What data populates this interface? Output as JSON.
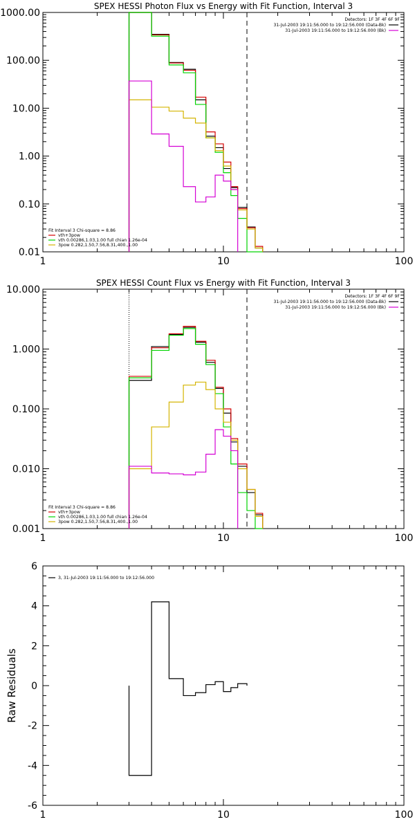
{
  "chart_data": [
    {
      "type": "line",
      "title": "SPEX HESSI Photon Flux vs Energy with Fit Function, Interval 3",
      "xlabel": "",
      "ylabel": "",
      "x_scale": "log",
      "y_scale": "log",
      "xlim": [
        1,
        100
      ],
      "ylim": [
        0.01,
        1000
      ],
      "x_tick_labels": [
        "1",
        "10",
        "100"
      ],
      "y_tick_labels": [
        "0.01",
        "0.10",
        "1.00",
        "10.00",
        "100.00",
        "1000.00"
      ],
      "legend_right": [
        {
          "text": "Detectors: 1F 3F 4F 6F 9F",
          "color": ""
        },
        {
          "text": "31-Jul-2003 19:11:56.000 to 19:12:56.000 (Data-Bk)",
          "color": "#000000"
        },
        {
          "text": "31-Jul-2003 19:11:56.000 to 19:12:56.000 (Bk)",
          "color": "#d400d4"
        }
      ],
      "legend_left": [
        {
          "text": "Fit Interval 3   Chi-square = 8.86",
          "color": ""
        },
        {
          "text": "vth+3pow",
          "color": "#d40000"
        },
        {
          "text": "vth 0.00286,1.03,1.00  full chian 1.26e-04",
          "color": "#00d400"
        },
        {
          "text": "3pow 0.282,1.50,7.56,8.31,400.,1.00",
          "color": "#d4b400"
        }
      ],
      "vlines": [
        {
          "x": 3.0,
          "style": "dotted",
          "color": "#000000"
        },
        {
          "x": 13.5,
          "style": "dashed",
          "color": "#000000"
        }
      ],
      "bin_edges": [
        3.0,
        4.0,
        5.0,
        6.0,
        7.0,
        8.0,
        9.0,
        10.0,
        11.0,
        12.0,
        13.5,
        15.0,
        16.5
      ],
      "series": [
        {
          "name": "",
          "color": "#000000",
          "values": [
            1000,
            350,
            90,
            65,
            15,
            2.6,
            1.5,
            0.55,
            0.22,
            0.085,
            0.033,
            0.012
          ]
        },
        {
          "name": "vth+3pow",
          "color": "#d40000",
          "values": [
            1000,
            340,
            88,
            62,
            17,
            3.2,
            1.8,
            0.75,
            0.23,
            0.08,
            0.032,
            0.013
          ]
        },
        {
          "name": "vth",
          "color": "#00d400",
          "values": [
            1000,
            320,
            80,
            55,
            12,
            2.4,
            1.2,
            0.45,
            0.15,
            0.05,
            0.01,
            0.01
          ]
        },
        {
          "name": "3pow",
          "color": "#d4b400",
          "values": [
            15,
            10.5,
            8.7,
            6.2,
            4.9,
            2.4,
            1.3,
            0.62,
            0.2,
            0.075,
            0.03,
            0.012
          ]
        },
        {
          "name": "",
          "color": "#d400d4",
          "values": [
            37,
            2.9,
            1.6,
            0.23,
            0.11,
            0.14,
            0.4,
            0.3,
            0.2
          ]
        }
      ]
    },
    {
      "type": "line",
      "title": "SPEX HESSI Count Flux vs Energy with Fit Function, Interval 3",
      "xlabel": "",
      "ylabel": "",
      "x_scale": "log",
      "y_scale": "log",
      "xlim": [
        1,
        100
      ],
      "ylim": [
        0.001,
        10
      ],
      "x_tick_labels": [
        "1",
        "10",
        "100"
      ],
      "y_tick_labels": [
        "0.001",
        "0.010",
        "0.100",
        "1.000",
        "10.000"
      ],
      "legend_right": [
        {
          "text": "Detectors: 1F 3F 4F 6F 9F",
          "color": ""
        },
        {
          "text": "31-Jul-2003 19:11:56.000 to 19:12:56.000 (Data-Bk)",
          "color": "#000000"
        },
        {
          "text": "31-Jul-2003 19:11:56.000 to 19:12:56.000 (Bk)",
          "color": "#d400d4"
        }
      ],
      "legend_left": [
        {
          "text": "Fit Interval 3   Chi-square = 8.86",
          "color": ""
        },
        {
          "text": "vth+3pow",
          "color": "#d40000"
        },
        {
          "text": "vth 0.00286,1.03,1.00  full chian 1.26e-04",
          "color": "#00d400"
        },
        {
          "text": "3pow 0.282,1.50,7.56,8.31,400.,1.00",
          "color": "#d4b400"
        }
      ],
      "vlines": [
        {
          "x": 3.0,
          "style": "dotted",
          "color": "#000000"
        },
        {
          "x": 13.5,
          "style": "dashed",
          "color": "#000000"
        }
      ],
      "bin_edges": [
        3.0,
        4.0,
        5.0,
        6.0,
        7.0,
        8.0,
        9.0,
        10.0,
        11.0,
        12.0,
        13.5,
        15.0,
        16.5
      ],
      "series": [
        {
          "name": "",
          "color": "#000000",
          "values": [
            0.3,
            1.1,
            1.75,
            2.3,
            1.3,
            0.6,
            0.22,
            0.085,
            0.028,
            0.011,
            0.004,
            0.0017
          ]
        },
        {
          "name": "vth+3pow",
          "color": "#d40000",
          "values": [
            0.35,
            1.05,
            1.8,
            2.4,
            1.35,
            0.65,
            0.23,
            0.1,
            0.032,
            0.012,
            0.0045,
            0.0018
          ]
        },
        {
          "name": "vth",
          "color": "#00d400",
          "values": [
            0.33,
            0.95,
            1.7,
            2.2,
            1.2,
            0.55,
            0.18,
            0.05,
            0.012,
            0.004,
            0.002,
            0.001
          ]
        },
        {
          "name": "3pow",
          "color": "#d4b400",
          "values": [
            0.01,
            0.05,
            0.13,
            0.25,
            0.28,
            0.21,
            0.1,
            0.06,
            0.03,
            0.01,
            0.0045,
            0.0016
          ]
        },
        {
          "name": "",
          "color": "#d400d4",
          "values": [
            0.011,
            0.0085,
            0.0082,
            0.0079,
            0.0088,
            0.0175,
            0.045,
            0.035,
            0.02
          ]
        }
      ]
    },
    {
      "type": "line",
      "title": "",
      "xlabel": "",
      "ylabel": "Raw Residuals",
      "x_scale": "log",
      "y_scale": "linear",
      "xlim": [
        1,
        100
      ],
      "ylim": [
        -6,
        6
      ],
      "x_tick_labels": [
        "1",
        "10",
        "100"
      ],
      "y_tick_labels": [
        "-6",
        "-4",
        "-2",
        "0",
        "2",
        "4",
        "6"
      ],
      "legend_left": [
        {
          "text": "3, 31-Jul-2003 19:11:56.000 to 19:12:56.000",
          "color": "#000000"
        }
      ],
      "bin_edges": [
        3.0,
        4.0,
        5.0,
        6.0,
        7.0,
        8.0,
        9.0,
        10.0,
        11.0,
        12.0,
        13.5
      ],
      "series": [
        {
          "name": "3, 31-Jul-2003 19:11:56.000 to 19:12:56.000",
          "color": "#000000",
          "values": [
            -4.5,
            4.2,
            0.35,
            -0.5,
            -0.35,
            0.05,
            0.2,
            -0.3,
            -0.1,
            0.1
          ]
        }
      ]
    }
  ]
}
